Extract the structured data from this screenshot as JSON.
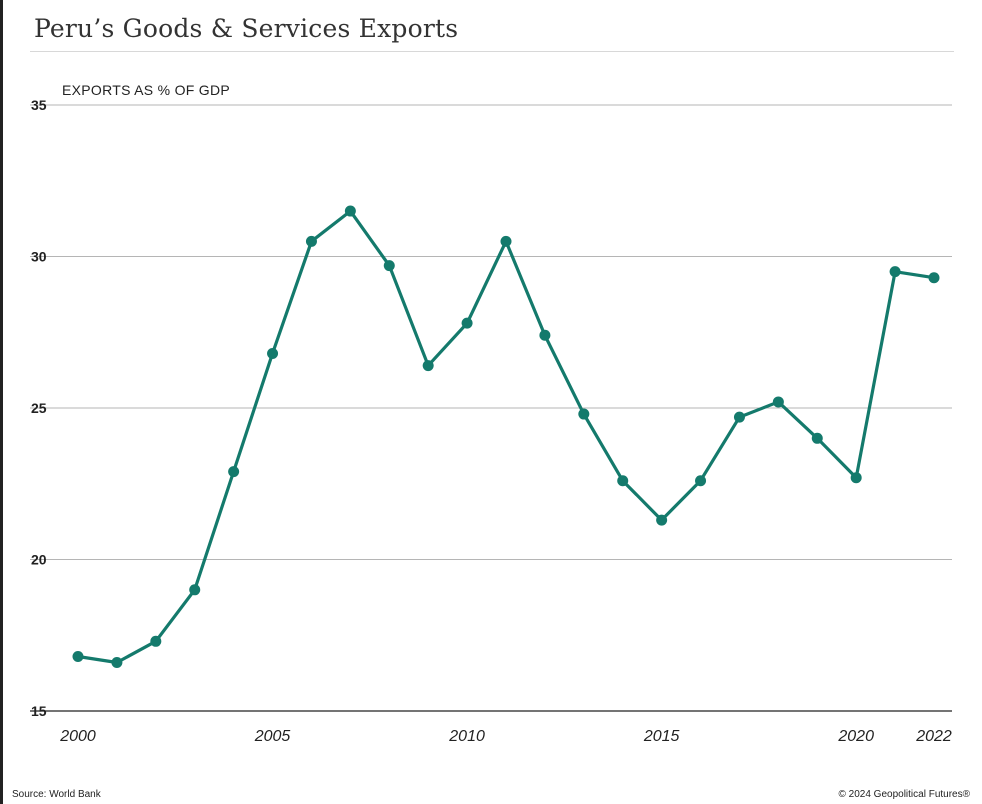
{
  "title": "Peru’s Goods & Services Exports",
  "footer": {
    "source": "Source: World Bank",
    "copyright": "© 2024 Geopolitical Futures®"
  },
  "colors": {
    "line": "#147a6c",
    "grid": "#b5b5b5",
    "text": "#222222"
  },
  "chart_data": {
    "type": "line",
    "title": "Peru’s Goods & Services Exports",
    "ylabel": "EXPORTS AS % OF GDP",
    "xlabel": "",
    "ylim": [
      15,
      35
    ],
    "yticks": [
      15,
      20,
      25,
      30,
      35
    ],
    "xticks": [
      2000,
      2005,
      2010,
      2015,
      2020,
      2022
    ],
    "grid": true,
    "markers": true,
    "series": [
      {
        "x": [
          2000,
          2001,
          2002,
          2003,
          2004,
          2005,
          2006,
          2007,
          2008,
          2009,
          2010,
          2011,
          2012,
          2013,
          2014,
          2015,
          2016,
          2017,
          2018,
          2019,
          2020,
          2021,
          2022
        ],
        "y": [
          16.8,
          16.6,
          17.3,
          19.0,
          22.9,
          26.8,
          30.5,
          31.5,
          29.7,
          26.4,
          27.8,
          30.5,
          27.4,
          24.8,
          22.6,
          21.3,
          22.6,
          24.7,
          25.2,
          24.0,
          22.7,
          29.5,
          29.3
        ]
      }
    ]
  }
}
